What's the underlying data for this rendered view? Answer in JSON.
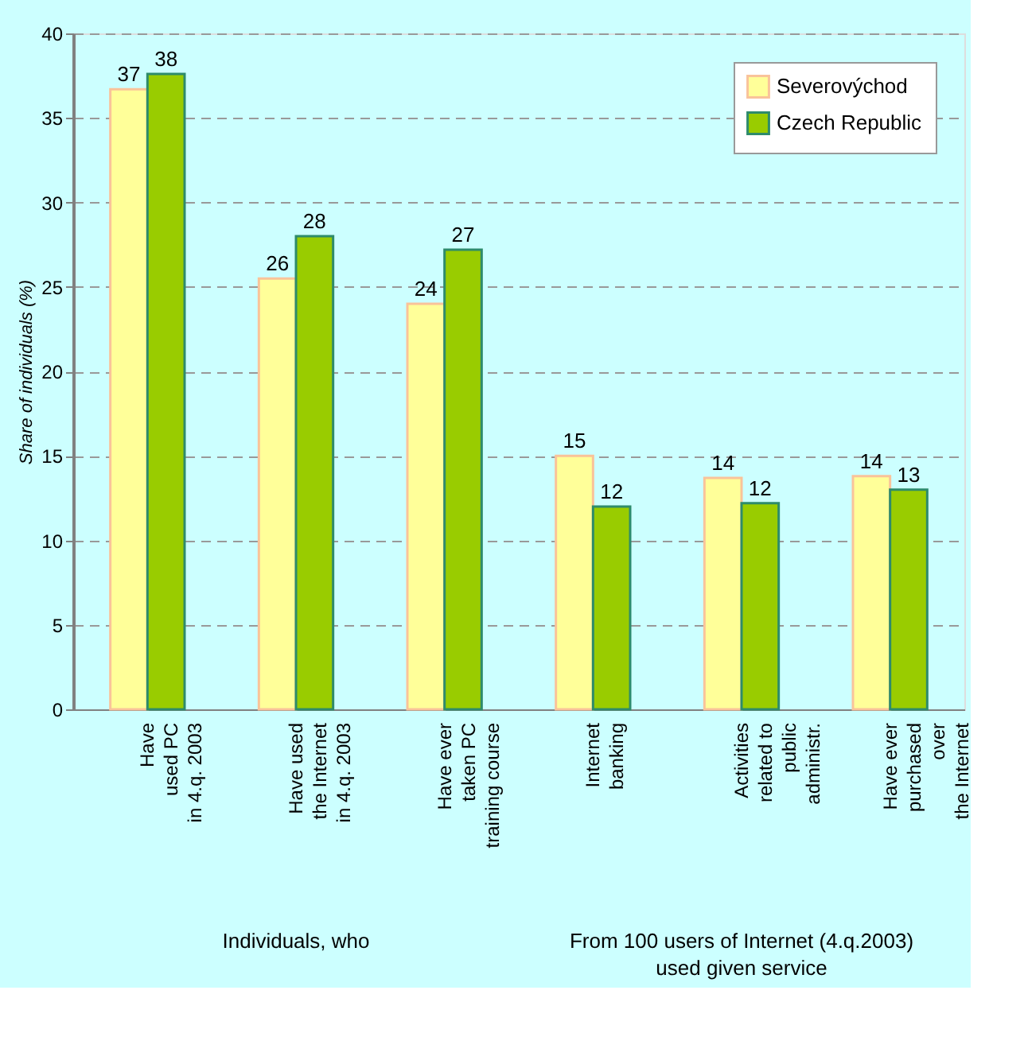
{
  "chart_data": {
    "type": "bar",
    "ylabel": "Share of individuals (%)",
    "categories": [
      "Have\nused PC\nin 4.q. 2003",
      "Have used\nthe Internet\nin 4.q. 2003",
      "Have ever\ntaken PC\ntraining course",
      "Internet\nbanking",
      "Activities\nrelated to\npublic\nadministr.",
      "Have ever\npurchased\nover\nthe Internet"
    ],
    "series": [
      {
        "name": "Severovýchod",
        "color": "#ffff99",
        "values": [
          36.7,
          25.5,
          24.0,
          15.0,
          13.7,
          13.8
        ],
        "value_labels": [
          "37",
          "26",
          "24",
          "15",
          "14",
          "14"
        ]
      },
      {
        "name": "Czech Republic",
        "color": "#99cc00",
        "values": [
          37.6,
          28.0,
          27.2,
          12.0,
          12.2,
          13.0
        ],
        "value_labels": [
          "38",
          "28",
          "27",
          "12",
          "12",
          "13"
        ]
      }
    ],
    "ylim": [
      0,
      40
    ],
    "yticks": [
      0,
      5,
      10,
      15,
      20,
      25,
      30,
      35,
      40
    ],
    "grid": "y",
    "legend": "top right",
    "annotations": [
      "Individuals, who",
      "From 100 users of Internet (4.q.2003)\nused given service"
    ]
  }
}
